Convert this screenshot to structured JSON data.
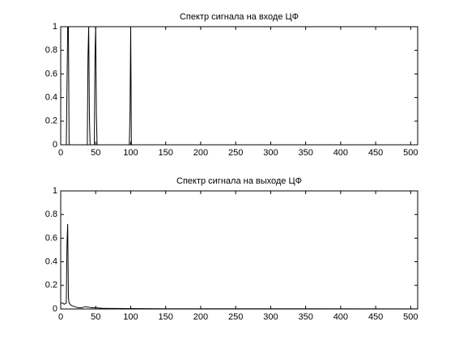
{
  "chart_data": [
    {
      "type": "line",
      "title": "Спектр сигнала на входе ЦФ",
      "color": "#000000",
      "x": [
        0,
        8,
        9,
        10,
        11,
        12,
        38,
        39,
        40,
        41,
        42,
        48,
        49,
        50,
        51,
        52,
        98,
        99,
        100,
        101,
        102,
        510
      ],
      "values": [
        0,
        0,
        0.5,
        1,
        1,
        0,
        0,
        0.75,
        1,
        0.25,
        0,
        0,
        0.75,
        1,
        0.25,
        0,
        0,
        0.25,
        1,
        0,
        0,
        0
      ],
      "xlim": [
        0,
        510
      ],
      "ylim": [
        0,
        1
      ],
      "xticks": [
        0,
        50,
        100,
        150,
        200,
        250,
        300,
        350,
        400,
        450,
        500
      ],
      "yticks": [
        0,
        0.2,
        0.4,
        0.6,
        0.8,
        1
      ],
      "grid": false
    },
    {
      "type": "line",
      "title": "Спектр сигнала на выходе ЦФ",
      "color": "#000000",
      "x": [
        0,
        3,
        5,
        8,
        9,
        10,
        11,
        12,
        15,
        20,
        25,
        30,
        35,
        40,
        45,
        50,
        60,
        80,
        100,
        150,
        510
      ],
      "values": [
        0.05,
        0.05,
        0.04,
        0.05,
        0.55,
        0.72,
        0.1,
        0.05,
        0.03,
        0.02,
        0.01,
        0.01,
        0.02,
        0.015,
        0.01,
        0.01,
        0.005,
        0.004,
        0.003,
        0.002,
        0.001
      ],
      "xlim": [
        0,
        510
      ],
      "ylim": [
        0,
        1
      ],
      "xticks": [
        0,
        50,
        100,
        150,
        200,
        250,
        300,
        350,
        400,
        450,
        500
      ],
      "yticks": [
        0,
        0.2,
        0.4,
        0.6,
        0.8,
        1
      ],
      "grid": false
    }
  ]
}
